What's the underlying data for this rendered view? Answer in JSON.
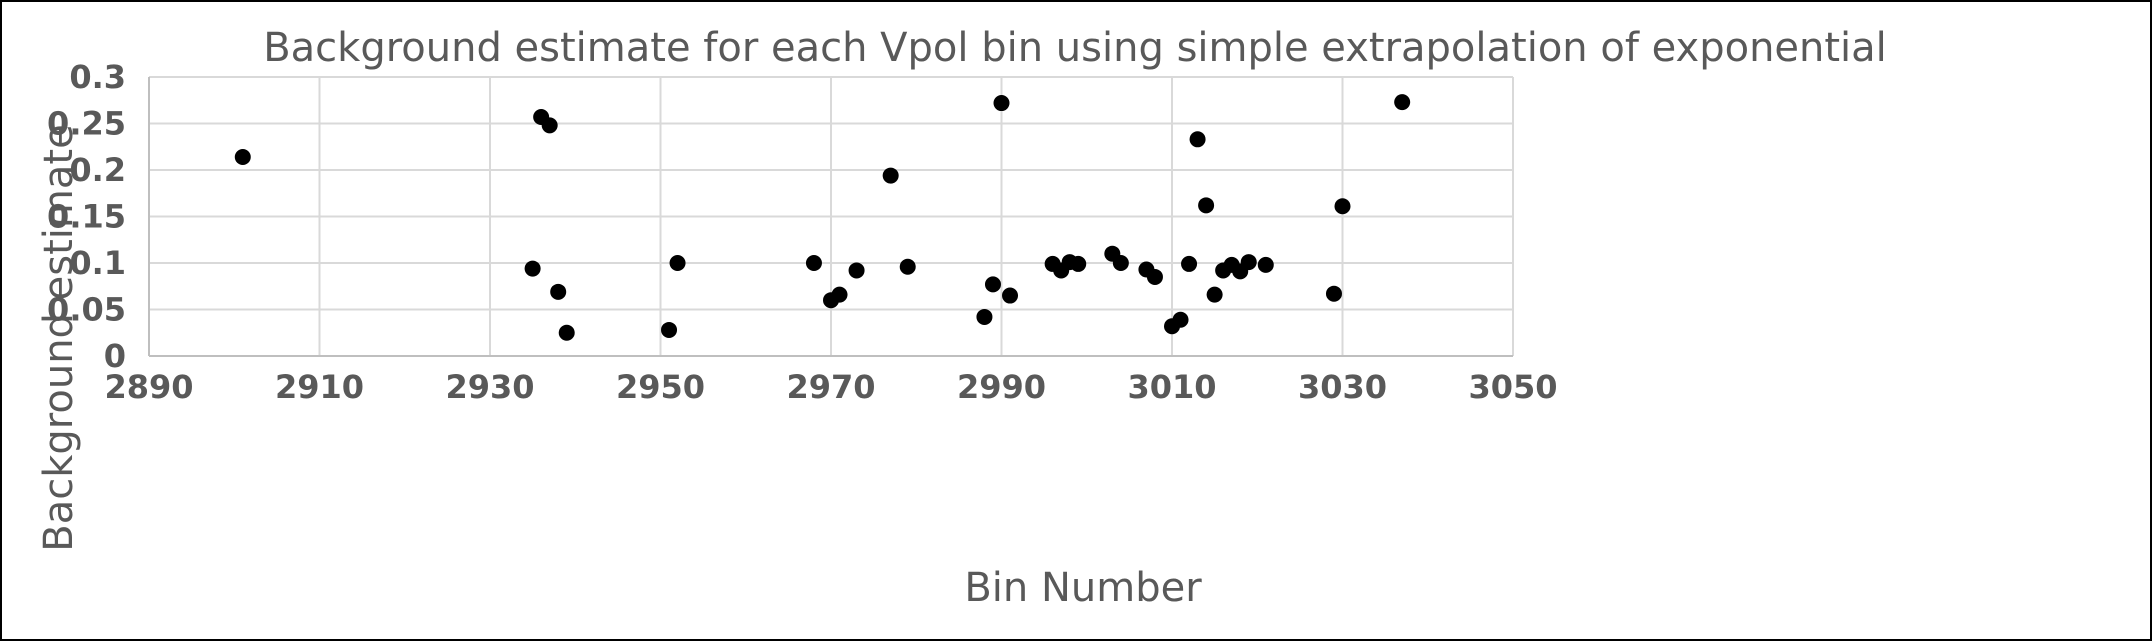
{
  "chart_data": {
    "type": "scatter",
    "title": "Background estimate for each Vpol bin using simple extrapolation of exponential",
    "xlabel": "Bin Number",
    "ylabel": "Background estimate",
    "xlim": [
      2890,
      3050
    ],
    "ylim": [
      0,
      0.3
    ],
    "xticks": [
      2890,
      2910,
      2930,
      2950,
      2970,
      2990,
      3010,
      3030,
      3050
    ],
    "yticks": [
      0,
      0.05,
      0.1,
      0.15,
      0.2,
      0.25,
      0.3
    ],
    "xtick_labels": [
      "2890",
      "2910",
      "2930",
      "2950",
      "2970",
      "2990",
      "3010",
      "3030",
      "3050"
    ],
    "ytick_labels": [
      "0",
      "0.05",
      "0.1",
      "0.15",
      "0.2",
      "0.25",
      "0.3"
    ],
    "grid": true,
    "legend": "none",
    "marker_color": "#000000",
    "points": [
      {
        "x": 2901,
        "y": 0.214
      },
      {
        "x": 2935,
        "y": 0.094
      },
      {
        "x": 2936,
        "y": 0.257
      },
      {
        "x": 2937,
        "y": 0.248
      },
      {
        "x": 2938,
        "y": 0.069
      },
      {
        "x": 2939,
        "y": 0.025
      },
      {
        "x": 2951,
        "y": 0.028
      },
      {
        "x": 2952,
        "y": 0.1
      },
      {
        "x": 2968,
        "y": 0.1
      },
      {
        "x": 2970,
        "y": 0.06
      },
      {
        "x": 2971,
        "y": 0.066
      },
      {
        "x": 2973,
        "y": 0.092
      },
      {
        "x": 2977,
        "y": 0.194
      },
      {
        "x": 2979,
        "y": 0.096
      },
      {
        "x": 2988,
        "y": 0.042
      },
      {
        "x": 2989,
        "y": 0.077
      },
      {
        "x": 2990,
        "y": 0.272
      },
      {
        "x": 2991,
        "y": 0.065
      },
      {
        "x": 2996,
        "y": 0.099
      },
      {
        "x": 2997,
        "y": 0.092
      },
      {
        "x": 2998,
        "y": 0.101
      },
      {
        "x": 2999,
        "y": 0.099
      },
      {
        "x": 3003,
        "y": 0.11
      },
      {
        "x": 3004,
        "y": 0.1
      },
      {
        "x": 3007,
        "y": 0.093
      },
      {
        "x": 3008,
        "y": 0.085
      },
      {
        "x": 3010,
        "y": 0.032
      },
      {
        "x": 3011,
        "y": 0.039
      },
      {
        "x": 3012,
        "y": 0.099
      },
      {
        "x": 3013,
        "y": 0.233
      },
      {
        "x": 3014,
        "y": 0.162
      },
      {
        "x": 3015,
        "y": 0.066
      },
      {
        "x": 3016,
        "y": 0.092
      },
      {
        "x": 3017,
        "y": 0.098
      },
      {
        "x": 3018,
        "y": 0.091
      },
      {
        "x": 3019,
        "y": 0.101
      },
      {
        "x": 3021,
        "y": 0.098
      },
      {
        "x": 3029,
        "y": 0.067
      },
      {
        "x": 3030,
        "y": 0.161
      },
      {
        "x": 3037,
        "y": 0.273
      }
    ]
  }
}
